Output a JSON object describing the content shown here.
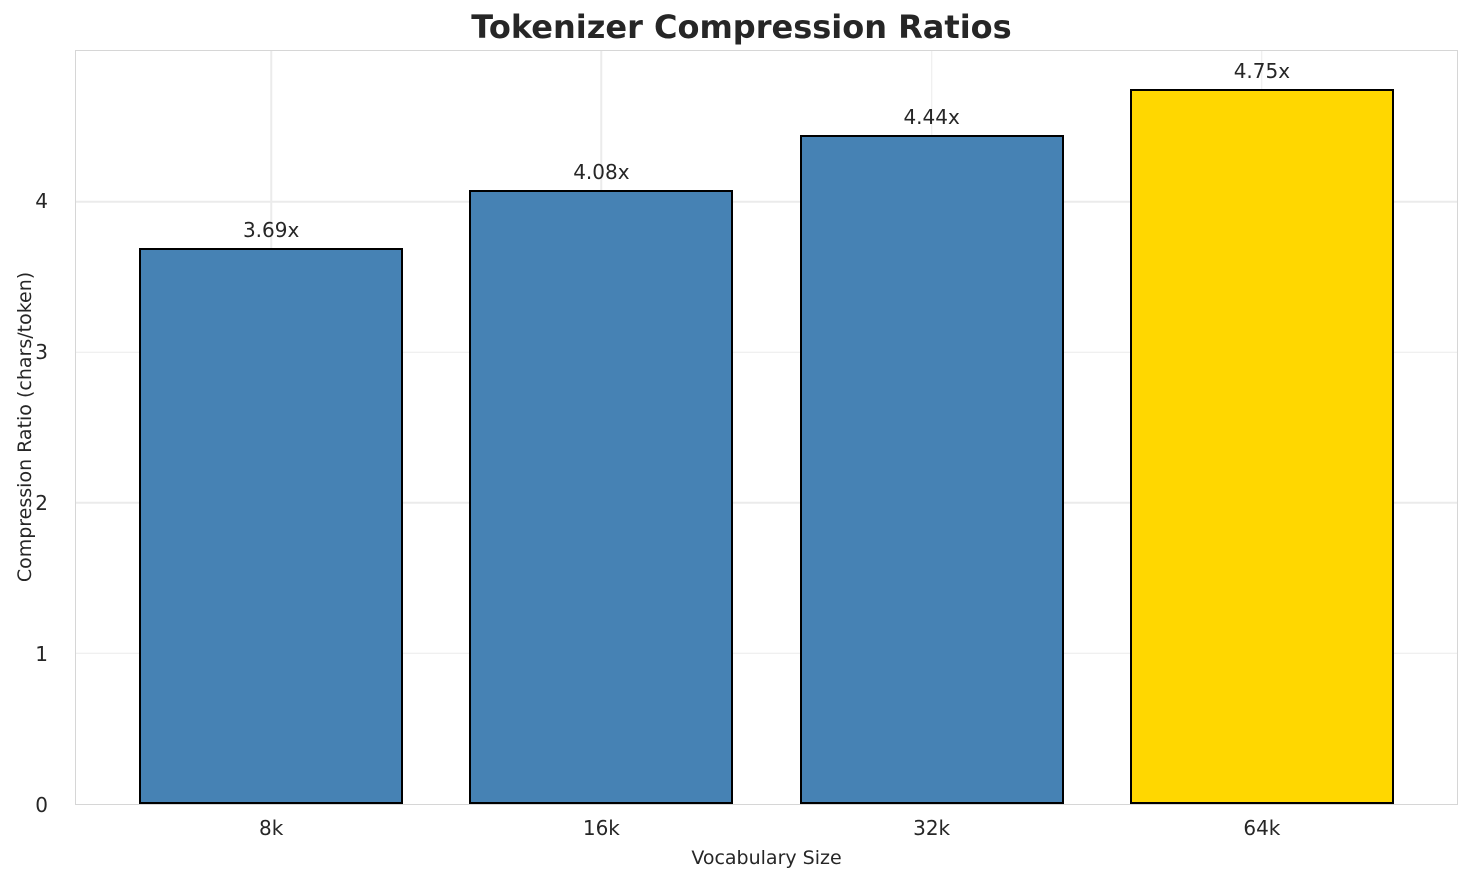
{
  "chart_data": {
    "type": "bar",
    "title": "Tokenizer Compression Ratios",
    "xlabel": "Vocabulary Size",
    "ylabel": "Compression Ratio (chars/token)",
    "categories": [
      "8k",
      "16k",
      "32k",
      "64k"
    ],
    "values": [
      3.69,
      4.08,
      4.44,
      4.75
    ],
    "value_labels": [
      "3.69x",
      "4.08x",
      "4.44x",
      "4.75x"
    ],
    "ylim": [
      0,
      5
    ],
    "yticks": [
      0,
      1,
      2,
      3,
      4
    ],
    "bar_colors": [
      "#4682b4",
      "#4682b4",
      "#4682b4",
      "#ffd700"
    ],
    "edge_color": "#000000",
    "grid": true,
    "legend": "none"
  }
}
